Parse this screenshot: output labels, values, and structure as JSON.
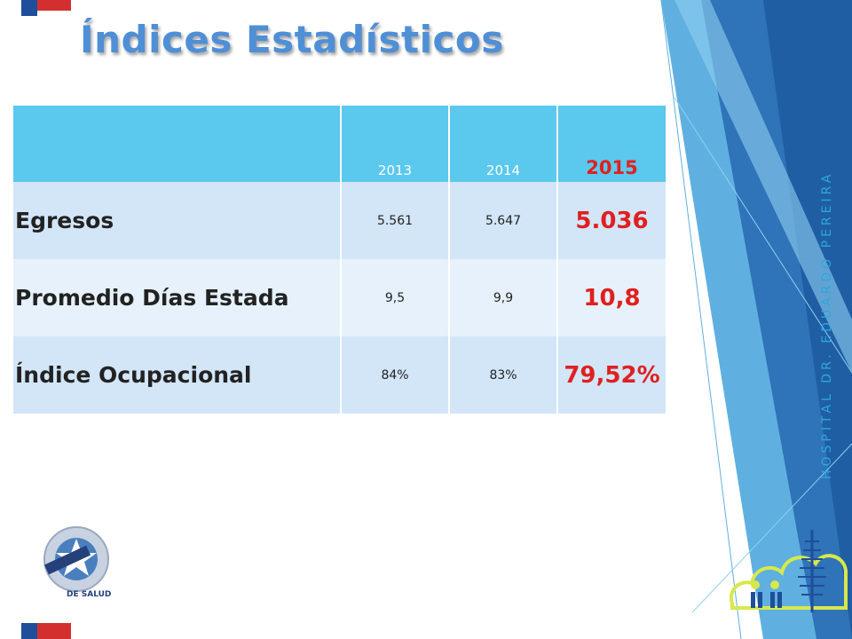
{
  "title": "Índices Estadísticos",
  "table": {
    "headers": [
      "",
      "2013",
      "2014",
      "2015"
    ],
    "rows": [
      {
        "label": "Egresos",
        "values": [
          "5.561",
          "5.647",
          "5.036"
        ]
      },
      {
        "label": "Promedio Días Estada",
        "values": [
          "9,5",
          "9,9",
          "10,8"
        ]
      },
      {
        "label": "Índice Ocupacional",
        "values": [
          "84%",
          "83%",
          "79,52%"
        ]
      }
    ]
  },
  "side_label": "HOSPITAL DR. EDUARDO PEREIRA",
  "seal": {
    "text": "DE SALUD"
  },
  "colors": {
    "title": "#4f8fd6",
    "header_bg": "#5bc8ee",
    "highlight": "#e02020",
    "row_dark": "#d2e6f8",
    "row_light": "#e6f1fb",
    "accent_blue": "#2ea6dc"
  },
  "icons": [
    "chile-flag-stripe",
    "accreditation-seal",
    "hospital-logo"
  ]
}
